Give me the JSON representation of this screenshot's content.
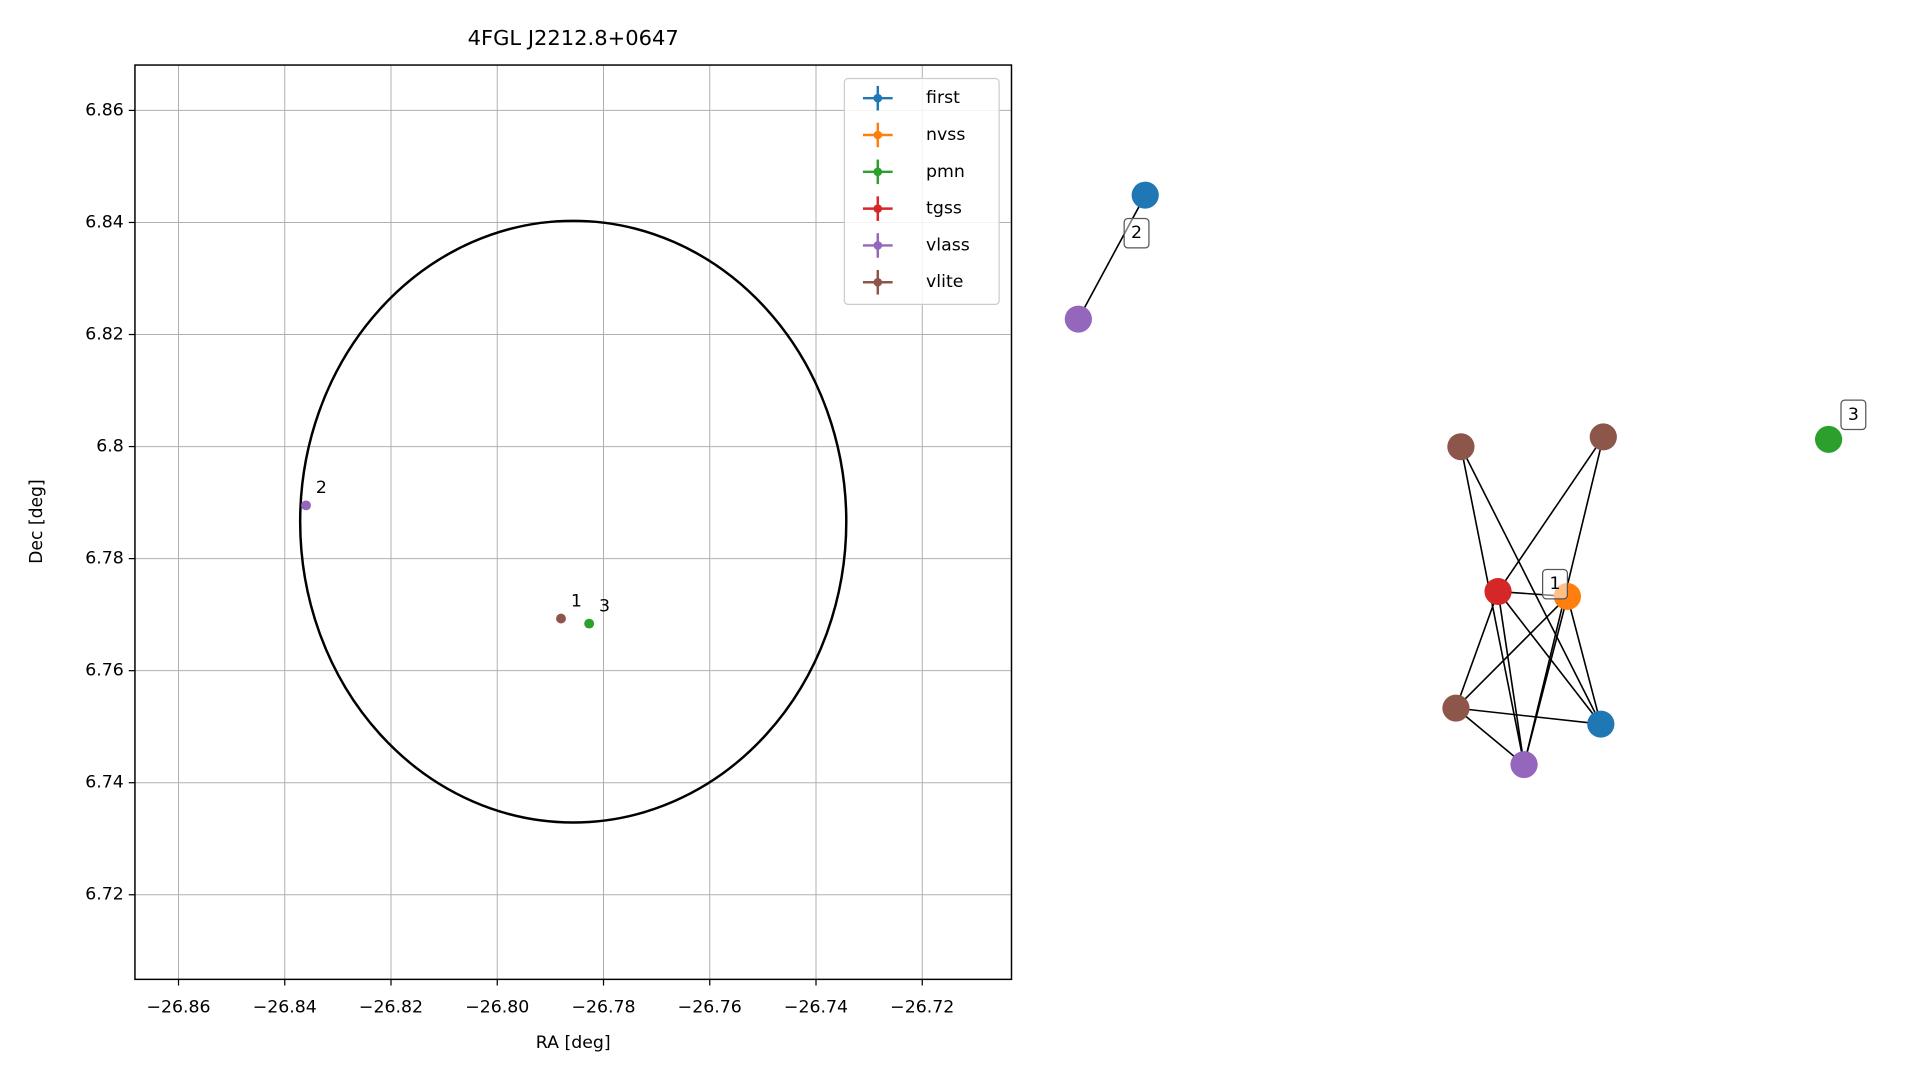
{
  "chart_data": [
    {
      "type": "scatter",
      "title": "4FGL J2212.8+0647",
      "xlabel": "RA [deg]",
      "ylabel": "Dec [deg]",
      "xlim": [
        -26.8682,
        -26.7032
      ],
      "ylim": [
        6.7049,
        6.8681
      ],
      "xticks": [
        {
          "value": -26.86,
          "label": "−26.86"
        },
        {
          "value": -26.84,
          "label": "−26.84"
        },
        {
          "value": -26.82,
          "label": "−26.82"
        },
        {
          "value": -26.8,
          "label": "−26.80"
        },
        {
          "value": -26.78,
          "label": "−26.78"
        },
        {
          "value": -26.76,
          "label": "−26.76"
        },
        {
          "value": -26.74,
          "label": "−26.74"
        },
        {
          "value": -26.72,
          "label": "−26.72"
        }
      ],
      "yticks": [
        6.72,
        6.74,
        6.76,
        6.78,
        6.8,
        6.82,
        6.84,
        6.86
      ],
      "grid": true,
      "legend": "upper right",
      "ellipse": {
        "ra": -26.7857,
        "dec": 6.7866,
        "semi_ra": 0.0514,
        "semi_dec": 0.0537,
        "color": "#000000"
      },
      "series": [
        {
          "name": "first",
          "color": "#1f77b4",
          "x": [],
          "y": [],
          "labels": []
        },
        {
          "name": "nvss",
          "color": "#ff7f0e",
          "x": [],
          "y": [],
          "labels": []
        },
        {
          "name": "pmn",
          "color": "#2ca02c",
          "x": [
            -26.7827
          ],
          "y": [
            6.7684
          ],
          "labels": [
            "3"
          ]
        },
        {
          "name": "tgss",
          "color": "#d62728",
          "x": [],
          "y": [],
          "labels": []
        },
        {
          "name": "vlass",
          "color": "#9467bd",
          "x": [
            -26.836
          ],
          "y": [
            6.7895
          ],
          "labels": [
            "2"
          ]
        },
        {
          "name": "vlite",
          "color": "#8c564b",
          "x": [
            -26.788
          ],
          "y": [
            6.7693
          ],
          "labels": [
            "1"
          ]
        }
      ]
    },
    {
      "type": "network",
      "nodes": [
        "#1f77b4",
        "#9467bd",
        "#2ca02c",
        "#8c564b",
        "#8c564b",
        "#d62728",
        "#ff7f0e",
        "#8c564b",
        "#1f77b4",
        "#9467bd"
      ],
      "edges": [
        [
          0,
          1
        ],
        [
          3,
          9
        ],
        [
          3,
          8
        ],
        [
          4,
          5
        ],
        [
          4,
          9
        ],
        [
          5,
          6
        ],
        [
          5,
          7
        ],
        [
          5,
          8
        ],
        [
          5,
          9
        ],
        [
          6,
          7
        ],
        [
          6,
          8
        ],
        [
          6,
          9
        ],
        [
          7,
          8
        ],
        [
          7,
          9
        ]
      ],
      "labels": [
        "2",
        "3",
        "1"
      ]
    }
  ]
}
